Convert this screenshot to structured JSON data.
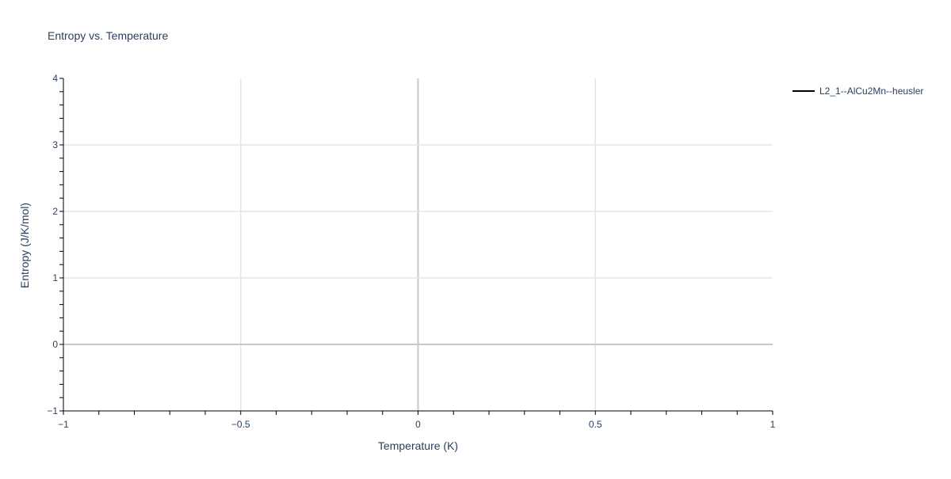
{
  "chart_data": {
    "type": "line",
    "title": "Entropy vs. Temperature",
    "xlabel": "Temperature (K)",
    "ylabel": "Entropy (J/K/mol)",
    "xlim": [
      -1,
      1
    ],
    "ylim": [
      -1,
      4
    ],
    "x_ticks": [
      -1,
      -0.5,
      0,
      0.5,
      1
    ],
    "x_tick_labels": [
      "−1",
      "−0.5",
      "0",
      "0.5",
      "1"
    ],
    "y_ticks": [
      -1,
      0,
      1,
      2,
      3,
      4
    ],
    "y_tick_labels": [
      "−1",
      "0",
      "1",
      "2",
      "3",
      "4"
    ],
    "x_minor_step": 0.1,
    "y_minor_step": 0.2,
    "grid": true,
    "legend_position": "top-right",
    "series": [
      {
        "name": "L2_1--AlCu2Mn--heusler",
        "color": "#000000",
        "x": [],
        "y": []
      }
    ]
  }
}
